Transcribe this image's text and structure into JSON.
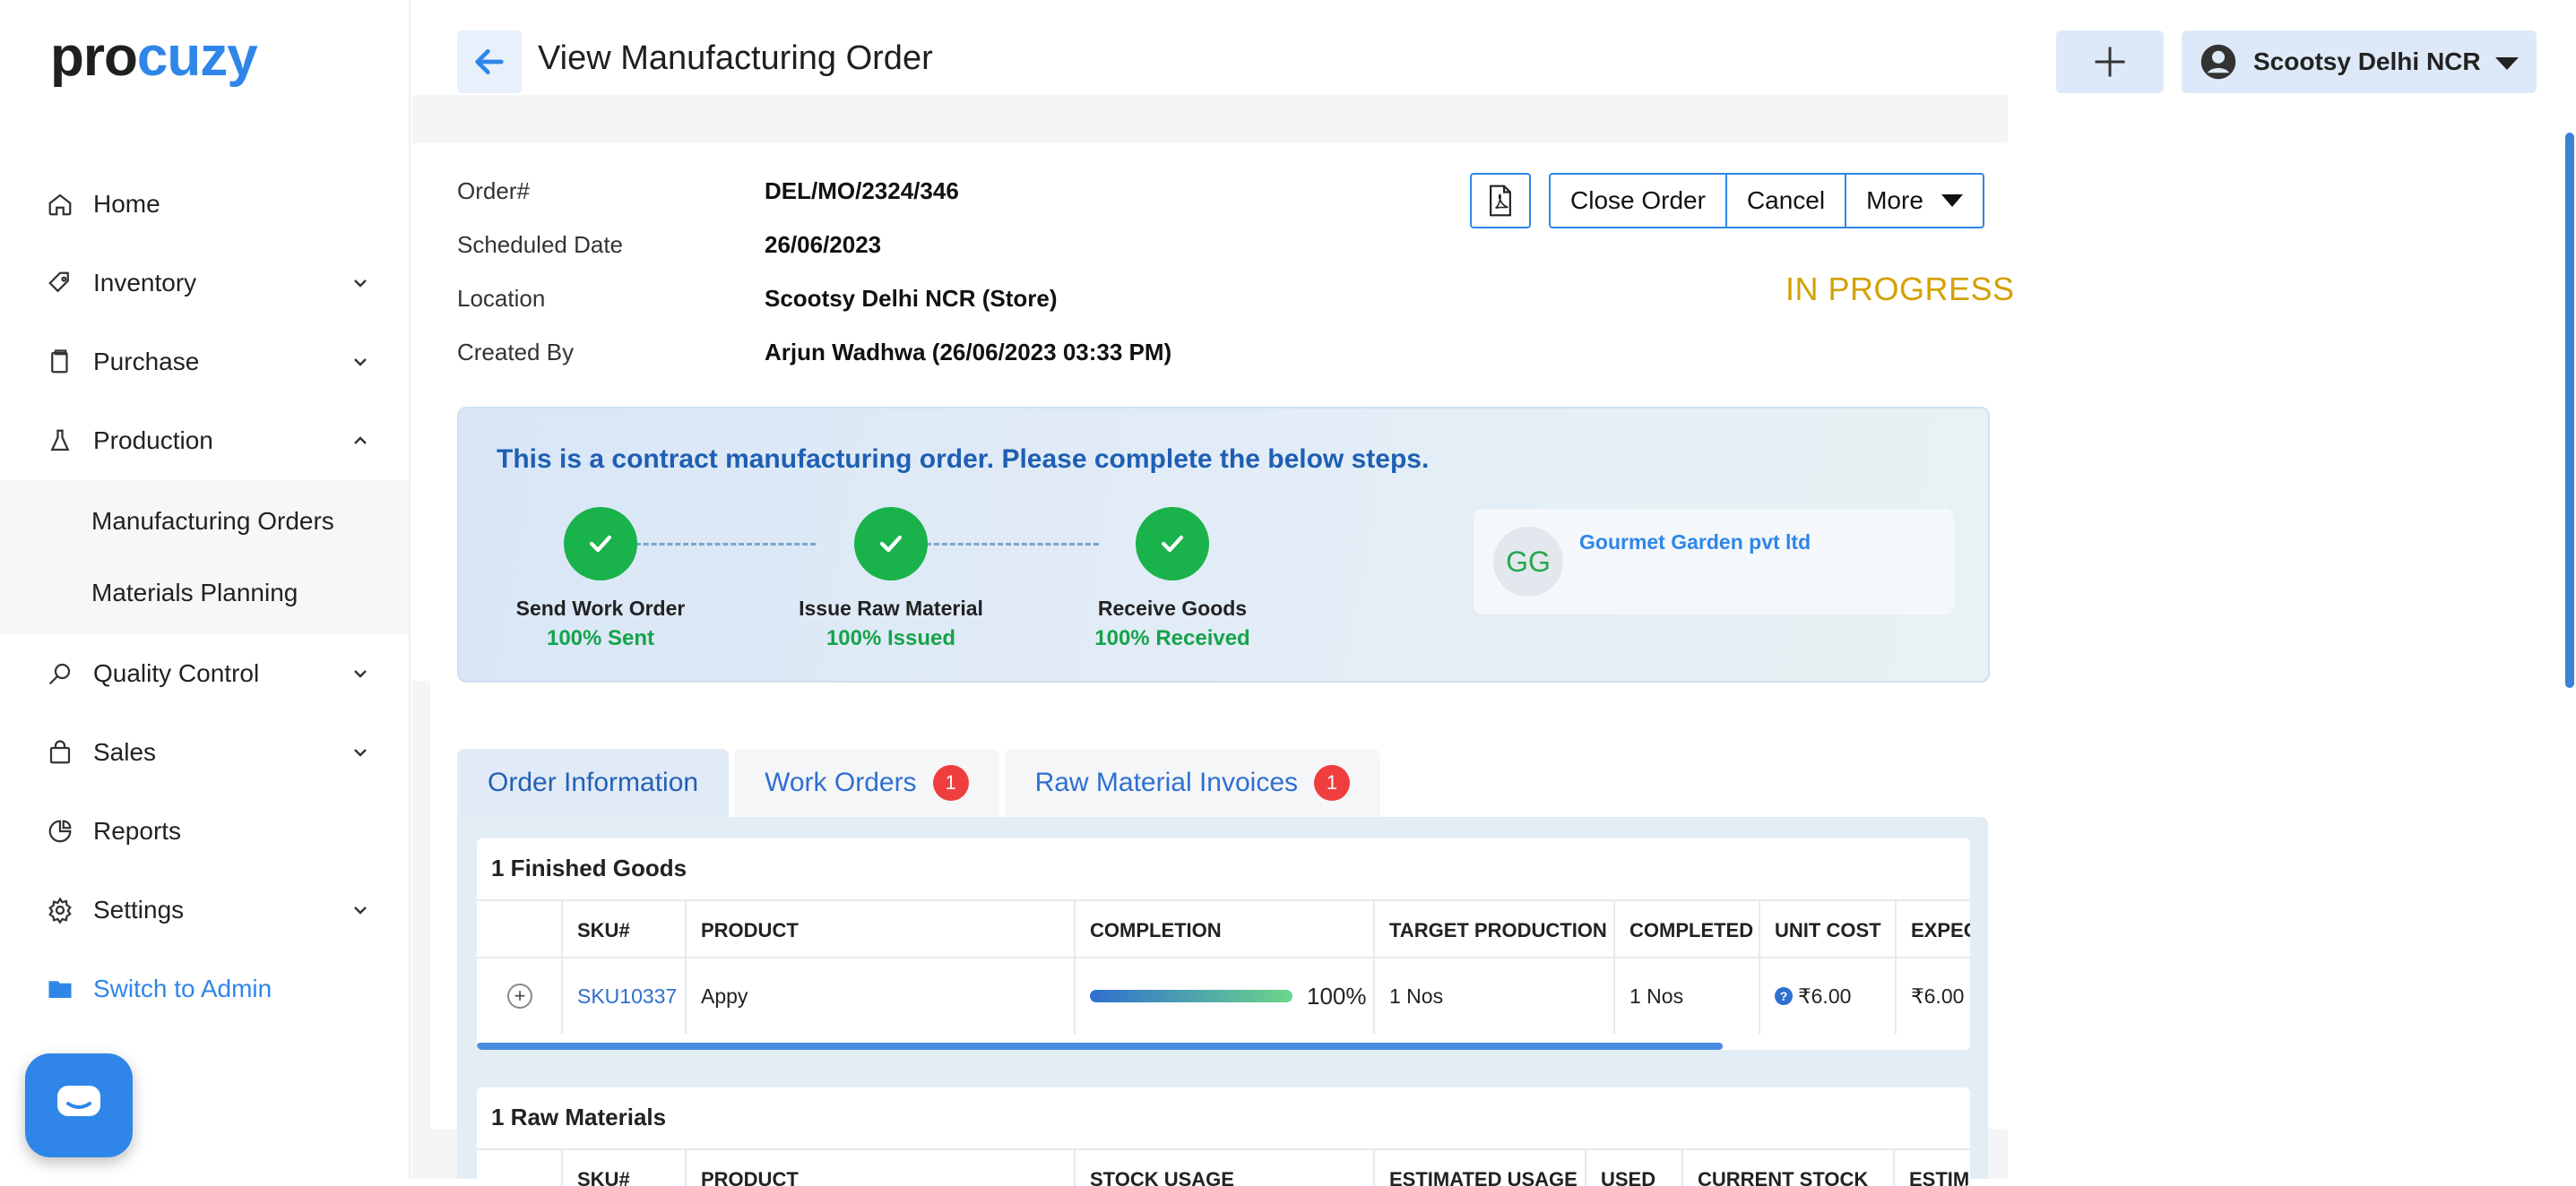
{
  "brand": {
    "logo_part1": "pro",
    "logo_part2": "cuzy"
  },
  "sidebar": {
    "items": [
      {
        "label": "Home",
        "icon": "home-icon"
      },
      {
        "label": "Inventory",
        "icon": "tag-icon"
      },
      {
        "label": "Purchase",
        "icon": "clipboard-icon"
      },
      {
        "label": "Production",
        "icon": "flask-icon"
      },
      {
        "label": "Quality Control",
        "icon": "search-icon"
      },
      {
        "label": "Sales",
        "icon": "bag-icon"
      },
      {
        "label": "Reports",
        "icon": "pie-chart-icon"
      },
      {
        "label": "Settings",
        "icon": "gear-icon"
      },
      {
        "label": "Switch to Admin",
        "icon": "folder-icon"
      }
    ],
    "production_sub": [
      "Manufacturing Orders",
      "Materials Planning"
    ]
  },
  "header": {
    "title": "View Manufacturing Order",
    "user": "Scootsy Delhi NCR"
  },
  "order": {
    "labels": [
      "Order#",
      "Scheduled Date",
      "Location",
      "Created By"
    ],
    "values": [
      "DEL/MO/2324/346",
      "26/06/2023",
      "Scootsy Delhi NCR (Store)",
      "Arjun Wadhwa (26/06/2023 03:33 PM)"
    ],
    "status": "IN PROGRESS",
    "status_color": "#d4a100",
    "actions": {
      "close": "Close Order",
      "cancel": "Cancel",
      "more": "More"
    }
  },
  "contract": {
    "message": "This is a contract manufacturing order. Please complete the below steps.",
    "steps": [
      {
        "label": "Send Work Order",
        "status": "100% Sent"
      },
      {
        "label": "Issue Raw Material",
        "status": "100% Issued"
      },
      {
        "label": "Receive Goods",
        "status": "100% Received"
      }
    ],
    "vendor_initials": "GG",
    "vendor_name": "Gourmet Garden pvt ltd"
  },
  "tabs": [
    {
      "label": "Order Information",
      "badge": ""
    },
    {
      "label": "Work Orders",
      "badge": "1"
    },
    {
      "label": "Raw Material Invoices",
      "badge": "1"
    }
  ],
  "finished_goods": {
    "caption": "1 Finished Goods",
    "headers": [
      "SKU#",
      "PRODUCT",
      "COMPLETION",
      "TARGET PRODUCTION",
      "COMPLETED",
      "UNIT COST",
      "EXPEC"
    ],
    "row": {
      "sku": "SKU10337",
      "product": "Appy",
      "completion": "100%",
      "completion_fraction": 1.0,
      "target": "1 Nos",
      "completed": "1 Nos",
      "unit_cost": "₹6.00",
      "expected": "₹6.00"
    }
  },
  "raw_materials": {
    "caption": "1 Raw Materials",
    "headers": [
      "SKU#",
      "PRODUCT",
      "STOCK USAGE",
      "ESTIMATED USAGE",
      "USED",
      "CURRENT STOCK",
      "ESTIMATI"
    ]
  },
  "colors": {
    "accent": "#2f86e8",
    "success": "#1ab24b",
    "badge": "#ef3e3e"
  }
}
